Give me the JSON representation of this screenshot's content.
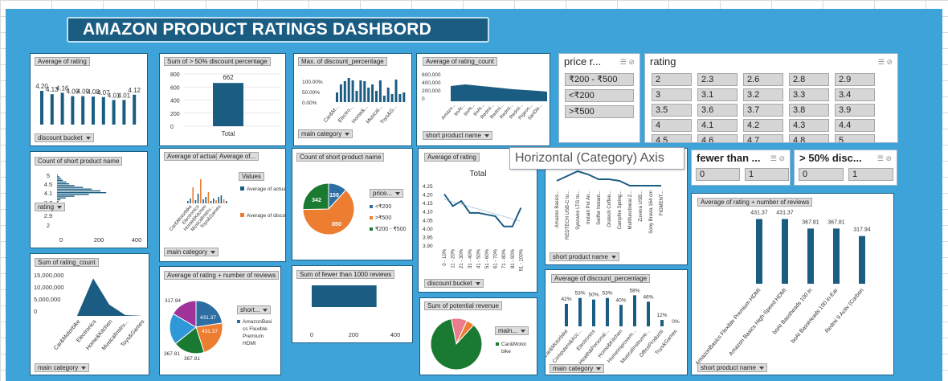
{
  "title": "AMAZON PRODUCT RATINGS DASHBORD",
  "tooltip": "Horizontal (Category) Axis",
  "colors": {
    "dark": "#1b5d82",
    "panel": "#3ea3d9",
    "orange": "#ed7d31",
    "green": "#1a7a31",
    "purple": "#a0339a",
    "blue": "#2d6ea3",
    "pink": "#ea6fa0"
  },
  "slicers": {
    "price": {
      "title": "price r...",
      "items": [
        "₹200 - ₹500",
        "<₹200",
        ">₹500"
      ]
    },
    "rating": {
      "title": "rating",
      "items": [
        "2",
        "2.3",
        "2.6",
        "2.8",
        "2.9",
        "3",
        "3.1",
        "3.2",
        "3.3",
        "3.4",
        "3.5",
        "3.6",
        "3.7",
        "3.8",
        "3.9",
        "4",
        "4.1",
        "4.2",
        "4.3",
        "4.4",
        "4.5",
        "4.6",
        "4.7",
        "4.8",
        "5"
      ]
    },
    "fewer": {
      "title": "fewer than ...",
      "items": [
        "0",
        "1"
      ]
    },
    "disc": {
      "title": "> 50% disc...",
      "items": [
        "0",
        "1"
      ]
    }
  },
  "charts": {
    "c1": {
      "header": "Average of rating",
      "filter": "discount bucket",
      "values": [
        4.2,
        4.13,
        4.16,
        4.09,
        4.09,
        4.08,
        4.07,
        4.01,
        4.01,
        4.12
      ],
      "labels": [
        "4.20",
        "4.13",
        "4.16",
        "4.09",
        "4.09",
        "4.08",
        "4.07",
        "4.01",
        "4.01",
        "4.12"
      ]
    },
    "c2": {
      "header": "Sum of > 50% discount percentage",
      "category": "Total",
      "value": 662,
      "value_label": "662",
      "ticks": [
        "800",
        "600",
        "400",
        "200",
        "0"
      ]
    },
    "c3": {
      "header": "Max. of discount_percentage",
      "filter": "main category",
      "ticks": [
        "100.00%",
        "50.00%",
        "0.00%"
      ],
      "categories": [
        "Car&M...",
        "Electro...",
        "Home&...",
        "Musical...",
        "Toys&G..."
      ]
    },
    "c4": {
      "header": "Average of rating_count",
      "filter": "short product name",
      "ticks": [
        "600,000",
        "400,000",
        "200,000",
        "0"
      ],
      "categories": [
        "Amazo...",
        "boAt...",
        "boAt...",
        "boAt...",
        "Redmi...",
        "Redmi...",
        "Redmi...",
        "Redmi...",
        "Pigeon...",
        "SanDis..."
      ]
    },
    "c5": {
      "header": "Count of short product name",
      "ticks": [
        "5",
        "4.5",
        "4.1",
        "3.7",
        "2.9",
        "2"
      ],
      "xticks": [
        "0",
        "200",
        "400"
      ],
      "filter": "rating",
      "bars": [
        3,
        8,
        14,
        20,
        32,
        42,
        60,
        90,
        120,
        150,
        170,
        110,
        60,
        30,
        12,
        5,
        3,
        2
      ]
    },
    "c6": {
      "header1": "Average of actual...",
      "header2": "Average of...",
      "filter": "main category",
      "legend_title": "Values",
      "legend1": "Average of actual price",
      "legend2": "Average of discounted_ price",
      "categories": [
        "Car&Motorbike",
        "Electronics",
        "Home&Kitchen",
        "MusicalInstru...",
        "Toys&Games"
      ]
    },
    "c7": {
      "header": "Count of short product name",
      "filter": "price...",
      "values": [
        159,
        850,
        342
      ],
      "legend": [
        "<₹200",
        ">₹500",
        "₹200 - ₹500"
      ]
    },
    "c8": {
      "header": "Average of rating",
      "chart_title": "Total",
      "filter": "discount bucket",
      "ticks": [
        "4.25",
        "4.20",
        "4.15",
        "4.10",
        "4.05",
        "4.00",
        "3.95",
        "3.90"
      ],
      "categories": [
        "0 - 10%",
        "11 - 20%",
        "21 - 30%",
        "31 - 40%",
        "41 - 50%",
        "51 - 60%",
        "61 - 70%",
        "71 - 80%",
        "81 - 90%",
        "91 - 100%"
      ],
      "values": [
        4.2,
        4.13,
        4.16,
        4.09,
        4.09,
        4.08,
        4.07,
        4.01,
        4.01,
        4.12
      ]
    },
    "c9": {
      "filter": "short product name",
      "categories": [
        "Amazon Basics...",
        "REDTECH USB-C to...",
        "Syncwire LTG to...",
        "Instant Pot Air...",
        "Swiffer Instant...",
        "Oratech Coffee...",
        "Campfire Spring...",
        "Multifunctional 2...",
        "Zuvexa USB...",
        "Sony Bravia 164 cm",
        "FIGMENT..."
      ]
    },
    "c10": {
      "header": "Sum of rating_count",
      "filter": "main category",
      "ticks": [
        "15,000,000",
        "10,000,000",
        "5,000,000",
        "0"
      ],
      "categories": [
        "Car&Motorbike",
        "Electronics",
        "Home&Kitchen",
        "MusicalInstru...",
        "Toys&Games"
      ],
      "values": [
        0.05,
        14.0,
        4.2,
        0.3,
        0.05
      ]
    },
    "c11": {
      "header": "Average of rating + number of reviews",
      "filter": "short...",
      "values": [
        431.37,
        431.37,
        367.81,
        367.81,
        317.94
      ],
      "labels": [
        "431.37",
        "431.37",
        "367.81",
        "367.81",
        "317.94"
      ],
      "legend": "AmazonBasics Flexible Premium HDMI"
    },
    "c12": {
      "header": "Sum of fewer than 1000 reviews",
      "xticks": [
        "0",
        "200",
        "400"
      ],
      "value": 300
    },
    "c13": {
      "header": "Sum of potential revenue",
      "filter": "main...",
      "legend": "Car&Motor bike"
    },
    "c14": {
      "header": "Average of discount_percentage",
      "filter": "main category",
      "labels": [
        "42%",
        "53%",
        "50%",
        "53%",
        "40%",
        "58%",
        "46%",
        "12%",
        "0%"
      ],
      "values": [
        42,
        53,
        50,
        53,
        40,
        58,
        46,
        12,
        0
      ],
      "categories": [
        "Car&Motorbike",
        "Computers&Acc...",
        "Electronics",
        "Health&Personal...",
        "Home&Kitchen",
        "HomeImprovem...",
        "MusicalInstrume...",
        "OfficeProducts",
        "Toys&Games"
      ]
    },
    "c15": {
      "header": "Average of rating + number of reviews",
      "filter": "short product name",
      "labels": [
        "431.37",
        "431.37",
        "367.81",
        "367.81",
        "317.94"
      ],
      "values": [
        431.37,
        431.37,
        367.81,
        367.81,
        317.94
      ],
      "categories": [
        "AmazonBasics Flexible Premium HDMI",
        "Amazon Basics High-Speed HDMI",
        "boAt Bassheads 100 in",
        "boAt BassHeads 100 in-Ear",
        "Redmi 9 Activ (Carbon"
      ]
    }
  }
}
